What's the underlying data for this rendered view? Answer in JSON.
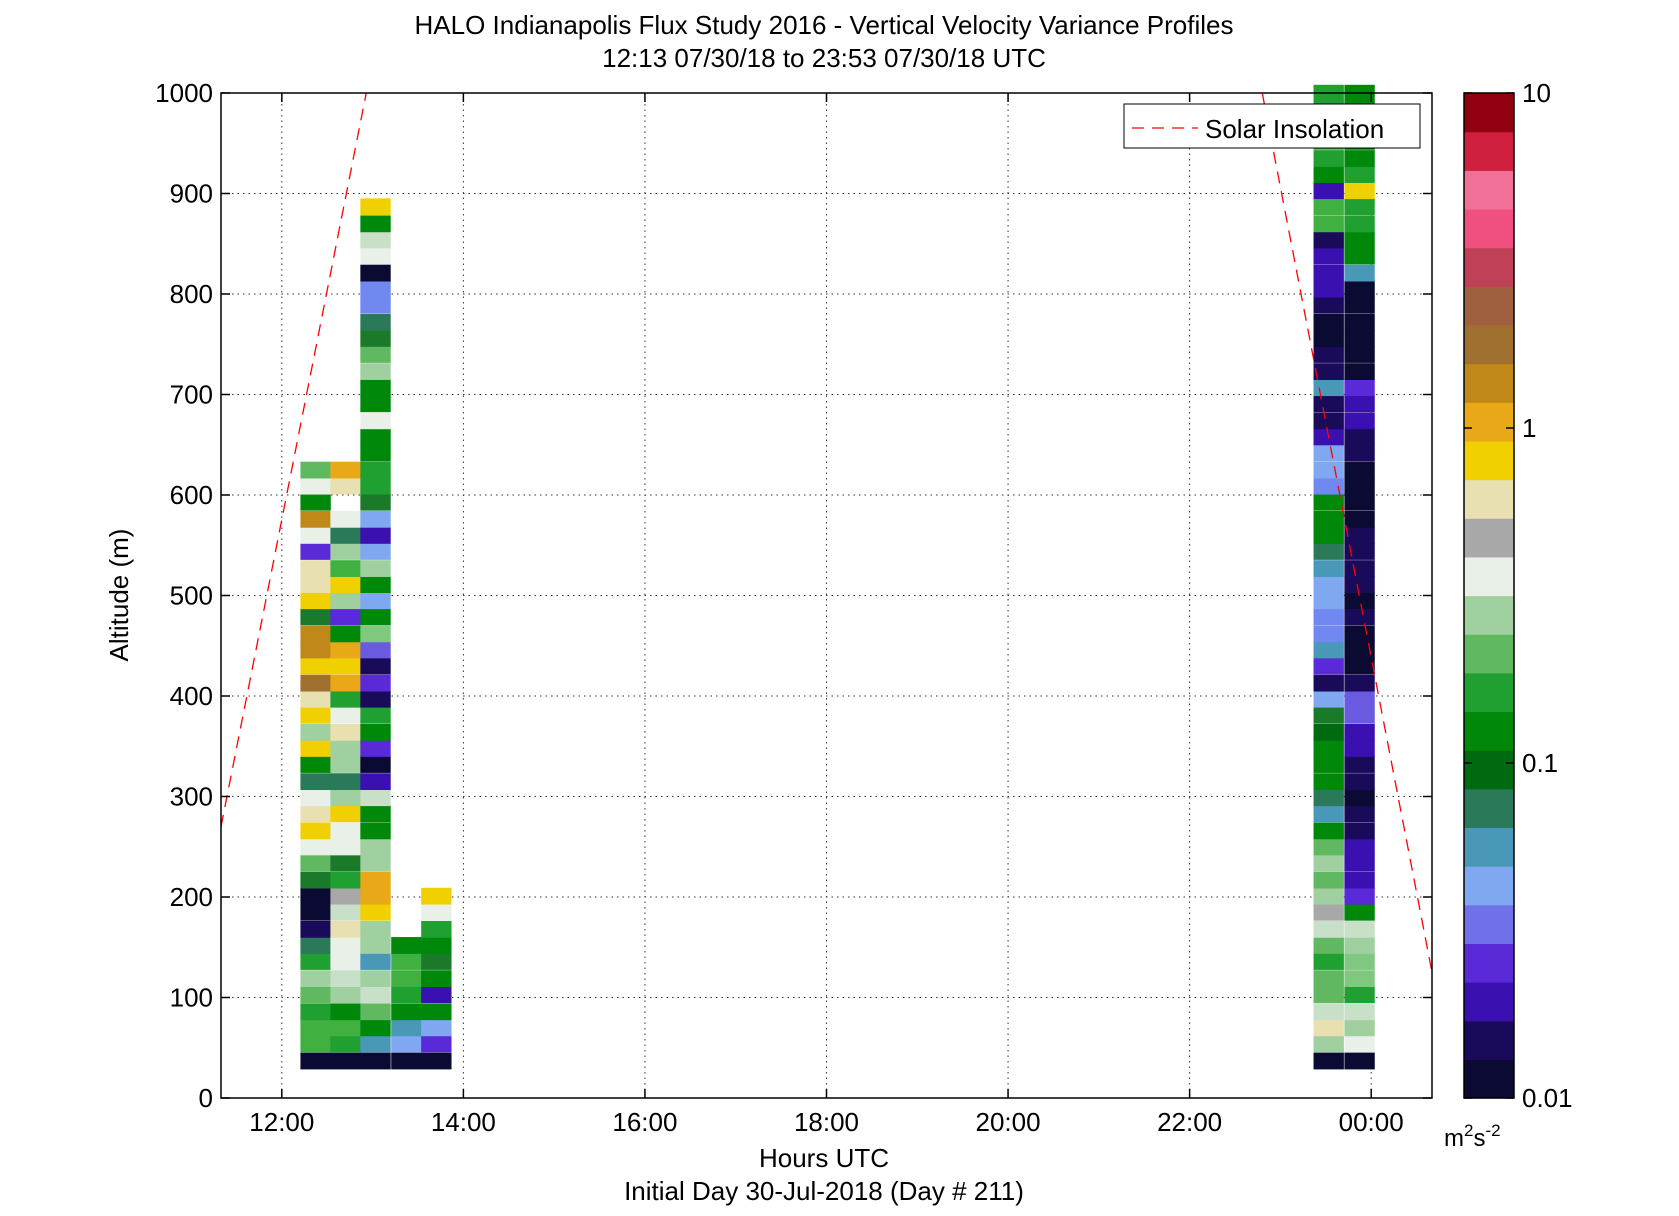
{
  "chart_data": {
    "type": "heatmap",
    "title": "HALO Indianapolis Flux Study 2016 - Vertical Velocity Variance Profiles",
    "subtitle": "12:13 07/30/18 to 23:53 07/30/18  UTC",
    "xlabel": "Hours UTC",
    "xlabel2": "Initial Day 30-Jul-2018 (Day # 211)",
    "ylabel": "Altitude (m)",
    "xlim": [
      11.33,
      24.67
    ],
    "ylim": [
      0,
      1000
    ],
    "x_ticks": [
      12,
      14,
      16,
      18,
      20,
      22,
      24
    ],
    "x_tick_labels": [
      "12:00",
      "14:00",
      "16:00",
      "18:00",
      "20:00",
      "22:00",
      "00:00"
    ],
    "y_ticks": [
      0,
      100,
      200,
      300,
      400,
      500,
      600,
      700,
      800,
      900,
      1000
    ],
    "y_tick_labels": [
      "0",
      "100",
      "200",
      "300",
      "400",
      "500",
      "600",
      "700",
      "800",
      "900",
      "1000"
    ],
    "grid": true,
    "legend": {
      "entries": [
        "Solar Insolation"
      ],
      "placement": "top-right"
    },
    "colorbar": {
      "scale": "log",
      "range": [
        0.01,
        10
      ],
      "tick_values": [
        0.01,
        0.1,
        1,
        10
      ],
      "tick_labels": [
        "0.01",
        "0.1",
        "1",
        "10"
      ],
      "units_base": "m",
      "units_sup1": "2",
      "units_s": "s",
      "units_sup2": "-2",
      "colors": [
        "#0a0a32",
        "#1a0a5a",
        "#3a10b0",
        "#5a2ad8",
        "#7070e8",
        "#80a8f0",
        "#4a98b8",
        "#2a7a5a",
        "#006a10",
        "#00880a",
        "#20a030",
        "#60b860",
        "#a0d0a0",
        "#e8f0e8",
        "#a8a8a8",
        "#e8e0b0",
        "#f0d000",
        "#e8a818",
        "#c08818",
        "#a07030",
        "#a06040",
        "#c04058",
        "#f05080",
        "#f07098",
        "#d02040",
        "#900010"
      ]
    },
    "series": [
      {
        "name": "Solar Insolation",
        "style": "dashed",
        "color": "#ff0000",
        "segments": [
          {
            "x": [
              11.33,
              12.93
            ],
            "y": [
              270,
              1000
            ]
          },
          {
            "x": [
              22.8,
              24.67
            ],
            "y": [
              1000,
              125
            ]
          }
        ]
      }
    ],
    "cell_height_m": 16.3,
    "cell_width_h": 0.33,
    "columns": [
      {
        "x": 12.37,
        "alts": [
          37,
          54,
          70,
          86,
          103,
          119,
          136,
          152,
          168,
          185,
          201,
          217,
          234,
          250,
          266,
          283,
          299,
          315,
          332,
          348,
          364,
          381,
          397,
          413,
          430,
          446,
          462,
          479,
          495,
          511,
          527,
          544,
          560,
          576,
          593,
          609,
          625
        ],
        "colors": [
          "#0a0a32",
          "#40b040",
          "#40b040",
          "#20a030",
          "#60b860",
          "#a0d0a0",
          "#20a030",
          "#2a7a5a",
          "#1a0a5a",
          "#0a0a32",
          "#0a0a32",
          "#1a7a2a",
          "#60b860",
          "#e8f0e8",
          "#f0d000",
          "#e8e0b0",
          "#e8f0e8",
          "#2a7a5a",
          "#00880a",
          "#f0d000",
          "#a0d0a0",
          "#f0d000",
          "#e8e0b0",
          "#a07030",
          "#f0d000",
          "#c08818",
          "#c08818",
          "#1a7a2a",
          "#f0d000",
          "#e8e0b0",
          "#e8e0b0",
          "#5a2ad8",
          "#e8f0e8",
          "#c08818",
          "#00880a",
          "#e8f0e8",
          "#60b860"
        ]
      },
      {
        "x": 12.7,
        "alts": [
          37,
          54,
          70,
          86,
          103,
          119,
          136,
          152,
          168,
          185,
          201,
          217,
          234,
          250,
          266,
          283,
          299,
          315,
          332,
          348,
          364,
          381,
          397,
          413,
          430,
          446,
          462,
          479,
          495,
          511,
          527,
          544,
          560,
          576,
          609,
          625
        ],
        "colors": [
          "#0a0a32",
          "#20a030",
          "#40b040",
          "#00880a",
          "#a0d0a0",
          "#c8e0c8",
          "#e8f0e8",
          "#e8f0e8",
          "#e8e0b0",
          "#c8e0c8",
          "#a8a8a8",
          "#20a030",
          "#1a7a2a",
          "#e8f0e8",
          "#e8f0e8",
          "#f0d000",
          "#a0d0a0",
          "#2a7a5a",
          "#a0d0a0",
          "#a0d0a0",
          "#e8e0b0",
          "#e8f0e8",
          "#20a030",
          "#e8a818",
          "#f0d000",
          "#e8a818",
          "#00880a",
          "#5a2ad8",
          "#a0d0a0",
          "#f0d000",
          "#40b040",
          "#a0d0a0",
          "#2a7a5a",
          "#e8f0e8",
          "#e8e0b0",
          "#e8a818"
        ]
      },
      {
        "x": 13.03,
        "alts": [
          37,
          54,
          70,
          86,
          103,
          119,
          136,
          152,
          168,
          185,
          201,
          217,
          234,
          250,
          266,
          283,
          299,
          315,
          332,
          348,
          364,
          381,
          397,
          413,
          430,
          446,
          462,
          479,
          495,
          511,
          527,
          544,
          560,
          576,
          593,
          609,
          625,
          642,
          658,
          674,
          691,
          707,
          723,
          740,
          756,
          772,
          789,
          805,
          821,
          838,
          854,
          870,
          887
        ],
        "colors": [
          "#0a0a32",
          "#4a98b8",
          "#00880a",
          "#60b860",
          "#c8e0c8",
          "#a0d0a0",
          "#4a98b8",
          "#a0d0a0",
          "#a0d0a0",
          "#f0d000",
          "#e8a818",
          "#e8a818",
          "#a0d0a0",
          "#a0d0a0",
          "#00880a",
          "#00880a",
          "#c8e0c8",
          "#3a10b0",
          "#0a0a32",
          "#5a2ad8",
          "#00880a",
          "#20a030",
          "#1a0a5a",
          "#5a2ad8",
          "#1a0a5a",
          "#6a5ae0",
          "#80c880",
          "#00880a",
          "#80a8f0",
          "#00880a",
          "#a0d0a0",
          "#80a8f0",
          "#3a10b0",
          "#80a8f0",
          "#1a7a2a",
          "#20a030",
          "#20a030",
          "#00880a",
          "#00880a",
          "#e8f0e8",
          "#00880a",
          "#00880a",
          "#a0d0a0",
          "#60b860",
          "#1a7a2a",
          "#2a7a5a",
          "#7088f0",
          "#7088f0",
          "#0a0a32",
          "#e8f0e8",
          "#c8e0c8",
          "#00880a",
          "#f0d000"
        ]
      },
      {
        "x": 13.37,
        "alts": [
          37,
          54,
          70,
          86,
          103,
          119,
          136,
          152
        ],
        "colors": [
          "#0a0a32",
          "#80a8f0",
          "#4a98b8",
          "#00880a",
          "#20a030",
          "#40b040",
          "#40b040",
          "#00880a"
        ]
      },
      {
        "x": 13.7,
        "alts": [
          37,
          54,
          70,
          86,
          103,
          119,
          136,
          152,
          168,
          185,
          201
        ],
        "colors": [
          "#0a0a32",
          "#5a2ad8",
          "#80a8f0",
          "#00880a",
          "#3a10b0",
          "#00880a",
          "#1a7a2a",
          "#00880a",
          "#20a030",
          "#e8f0e8",
          "#f0d000"
        ]
      },
      {
        "x": 23.53,
        "alts": [
          37,
          54,
          70,
          86,
          103,
          119,
          136,
          152,
          168,
          185,
          201,
          217,
          234,
          250,
          266,
          283,
          299,
          315,
          332,
          348,
          364,
          381,
          397,
          413,
          430,
          446,
          462,
          479,
          495,
          511,
          527,
          544,
          560,
          576,
          593,
          609,
          625,
          642,
          658,
          674,
          691,
          707,
          723,
          740,
          756,
          772,
          789,
          805,
          821,
          838,
          854,
          870,
          887,
          903,
          919,
          935,
          952,
          968,
          984,
          1000
        ],
        "colors": [
          "#0a0a32",
          "#a0d0a0",
          "#e8e0b0",
          "#c8e0c8",
          "#60b860",
          "#60b860",
          "#20a030",
          "#60b860",
          "#c8e0c8",
          "#a8a8a8",
          "#a0d0a0",
          "#60b860",
          "#a0d0a0",
          "#60b860",
          "#00880a",
          "#4a98b8",
          "#2a7a5a",
          "#00880a",
          "#00880a",
          "#00880a",
          "#006a10",
          "#1a7a2a",
          "#80a8f0",
          "#1a0a5a",
          "#5a2ad8",
          "#4a98b8",
          "#7088f0",
          "#7088f0",
          "#80a8f0",
          "#80a8f0",
          "#4a98b8",
          "#2a7a5a",
          "#00880a",
          "#00880a",
          "#00880a",
          "#7088f0",
          "#80a8f0",
          "#80a8f0",
          "#3a10b0",
          "#1a0a5a",
          "#1a0a5a",
          "#4a98b8",
          "#1a0a5a",
          "#1a0a5a",
          "#0a0a32",
          "#0a0a32",
          "#1a0a5a",
          "#3a10b0",
          "#3a10b0",
          "#3a10b0",
          "#1a0a5a",
          "#40b040",
          "#40b040",
          "#3a10b0",
          "#00880a",
          "#20a030",
          "#40b040",
          "#40b040",
          "#20a030",
          "#20a030"
        ]
      },
      {
        "x": 23.87,
        "alts": [
          37,
          54,
          70,
          86,
          103,
          119,
          136,
          152,
          168,
          185,
          201,
          217,
          234,
          250,
          266,
          283,
          299,
          315,
          332,
          348,
          364,
          381,
          397,
          413,
          430,
          446,
          462,
          479,
          495,
          511,
          527,
          544,
          560,
          576,
          593,
          609,
          625,
          642,
          658,
          674,
          691,
          707,
          723,
          740,
          756,
          772,
          789,
          805,
          821,
          838,
          854,
          870,
          887,
          903,
          919,
          935,
          952,
          968,
          984,
          1000
        ],
        "colors": [
          "#0a0a32",
          "#e8f0e8",
          "#a0d0a0",
          "#c8e0c8",
          "#20a030",
          "#80c880",
          "#80c880",
          "#a0d0a0",
          "#c8e0c8",
          "#00880a",
          "#5a2ad8",
          "#3a10b0",
          "#3a10b0",
          "#3a10b0",
          "#1a0a5a",
          "#1a0a5a",
          "#0a0a32",
          "#1a0a5a",
          "#1a0a5a",
          "#3a10b0",
          "#3a10b0",
          "#6a5ae0",
          "#6a5ae0",
          "#1a0a5a",
          "#0a0a32",
          "#0a0a32",
          "#0a0a32",
          "#1a0a5a",
          "#0a0a32",
          "#1a0a5a",
          "#1a0a5a",
          "#1a0a5a",
          "#1a0a5a",
          "#0a0a32",
          "#0a0a32",
          "#0a0a32",
          "#0a0a32",
          "#1a0a5a",
          "#1a0a5a",
          "#3a10b0",
          "#3a10b0",
          "#5a2ad8",
          "#0a0a32",
          "#0a0a32",
          "#0a0a32",
          "#0a0a32",
          "#0a0a32",
          "#0a0a32",
          "#4a98b8",
          "#00880a",
          "#00880a",
          "#20a030",
          "#20a030",
          "#f0d000",
          "#20a030",
          "#00880a",
          "#00880a",
          "#00880a",
          "#00880a",
          "#00880a"
        ]
      }
    ]
  }
}
